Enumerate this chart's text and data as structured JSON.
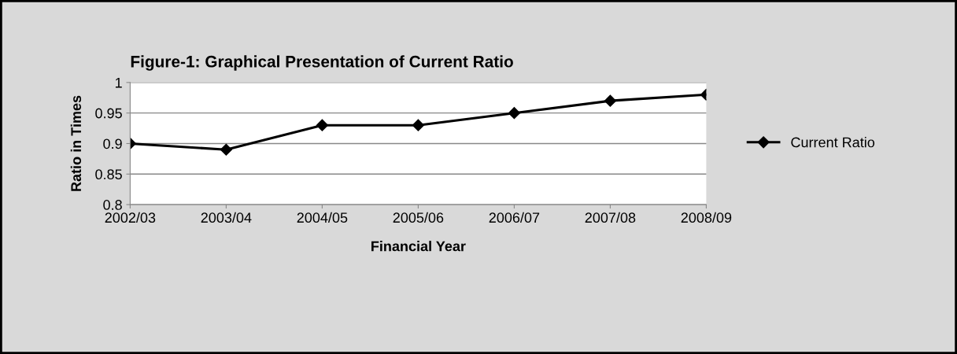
{
  "chart_data": {
    "type": "line",
    "title": "Figure-1: Graphical Presentation of Current Ratio",
    "xlabel": "Financial Year",
    "ylabel": "Ratio in Times",
    "categories": [
      "2002/03",
      "2003/04",
      "2004/05",
      "2005/06",
      "2006/07",
      "2007/08",
      "2008/09"
    ],
    "series": [
      {
        "name": "Current Ratio",
        "color": "#000000",
        "values": [
          0.9,
          0.89,
          0.93,
          0.93,
          0.95,
          0.97,
          0.98
        ]
      }
    ],
    "ylim": [
      0.8,
      1
    ],
    "yticks": [
      0.8,
      0.85,
      0.9,
      0.95,
      1
    ],
    "grid": "y",
    "legend": "right",
    "marker": "diamond",
    "line_style": "solid"
  }
}
